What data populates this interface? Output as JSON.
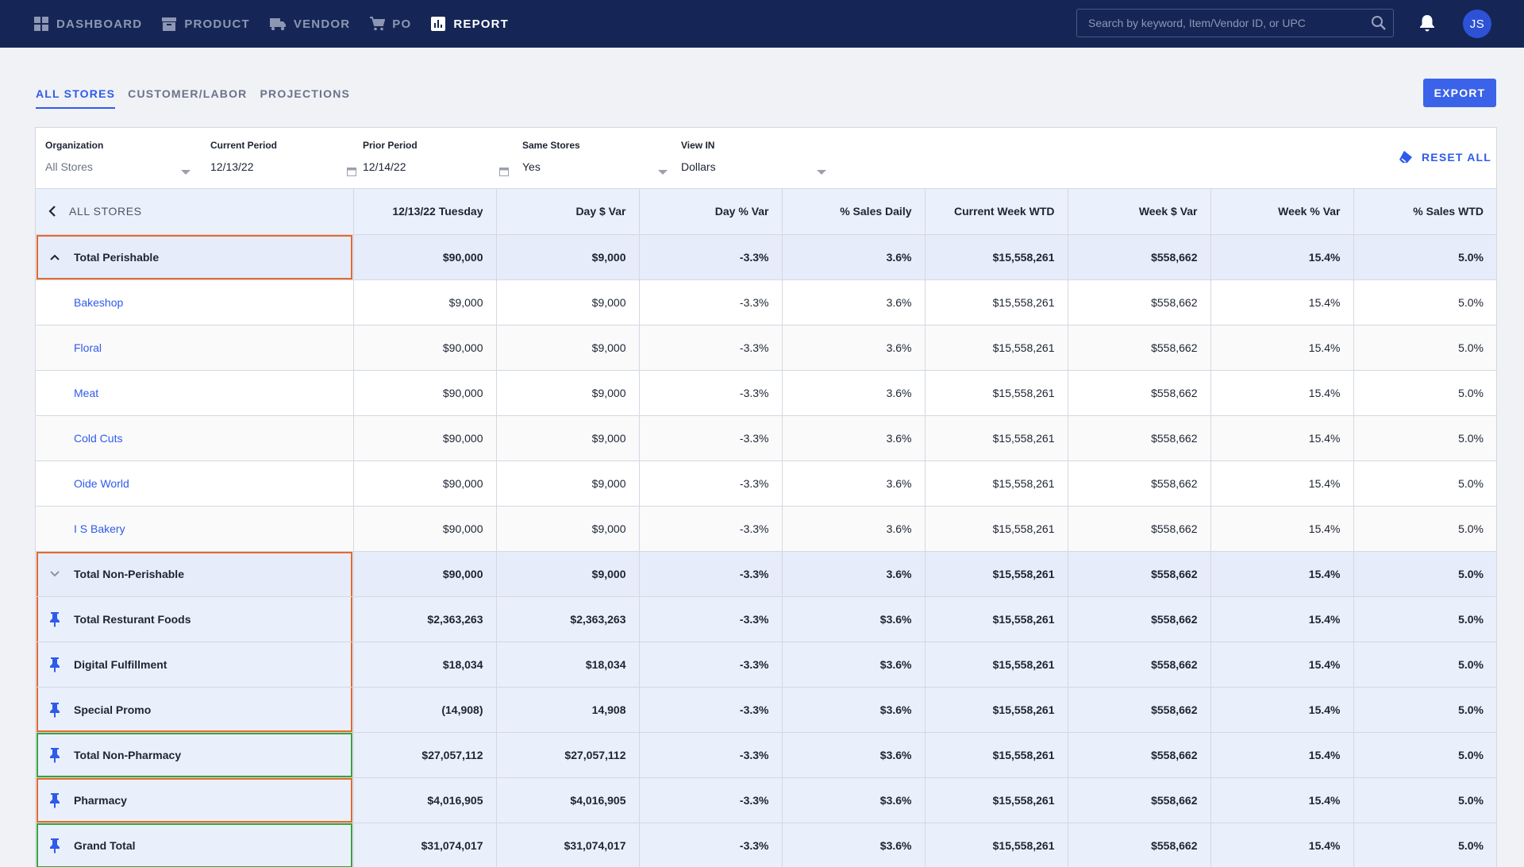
{
  "nav": {
    "items": [
      {
        "label": "DASHBOARD",
        "icon": "dashboard-icon",
        "active": false
      },
      {
        "label": "PRODUCT",
        "icon": "product-icon",
        "active": false
      },
      {
        "label": "VENDOR",
        "icon": "truck-icon",
        "active": false
      },
      {
        "label": "PO",
        "icon": "cart-icon",
        "active": false
      },
      {
        "label": "REPORT",
        "icon": "report-icon",
        "active": true
      }
    ],
    "search_placeholder": "Search by keyword, Item/Vendor ID, or UPC",
    "avatar_initials": "JS"
  },
  "tabs": [
    {
      "label": "ALL STORES",
      "active": true
    },
    {
      "label": "CUSTOMER/LABOR",
      "active": false
    },
    {
      "label": "PROJECTIONS",
      "active": false
    }
  ],
  "export_label": "EXPORT",
  "filters": {
    "organization": {
      "label": "Organization",
      "value": "All Stores"
    },
    "current_period": {
      "label": "Current Period",
      "value": "12/13/22"
    },
    "prior_period": {
      "label": "Prior Period",
      "value": "12/14/22"
    },
    "same_stores": {
      "label": "Same Stores",
      "value": "Yes"
    },
    "view_in": {
      "label": "View IN",
      "value": "Dollars"
    },
    "reset_label": "RESET ALL"
  },
  "table": {
    "back_label": "ALL STORES",
    "columns": [
      "12/13/22 Tuesday",
      "Day $ Var",
      "Day % Var",
      "% Sales Daily",
      "Current Week WTD",
      "Week $ Var",
      "Week % Var",
      "% Sales WTD"
    ],
    "rows": [
      {
        "label": "Total Perishable",
        "kind": "total",
        "lead": "chevron-up",
        "highlight": "orange",
        "values": [
          "$90,000",
          "$9,000",
          "-3.3%",
          "3.6%",
          "$15,558,261",
          "$558,662",
          "15.4%",
          "5.0%"
        ]
      },
      {
        "label": "Bakeshop",
        "kind": "child",
        "values": [
          "$9,000",
          "$9,000",
          "-3.3%",
          "3.6%",
          "$15,558,261",
          "$558,662",
          "15.4%",
          "5.0%"
        ]
      },
      {
        "label": "Floral",
        "kind": "child",
        "values": [
          "$90,000",
          "$9,000",
          "-3.3%",
          "3.6%",
          "$15,558,261",
          "$558,662",
          "15.4%",
          "5.0%"
        ]
      },
      {
        "label": "Meat",
        "kind": "child",
        "values": [
          "$90,000",
          "$9,000",
          "-3.3%",
          "3.6%",
          "$15,558,261",
          "$558,662",
          "15.4%",
          "5.0%"
        ]
      },
      {
        "label": "Cold Cuts",
        "kind": "child",
        "values": [
          "$90,000",
          "$9,000",
          "-3.3%",
          "3.6%",
          "$15,558,261",
          "$558,662",
          "15.4%",
          "5.0%"
        ]
      },
      {
        "label": "Oide World",
        "kind": "child",
        "values": [
          "$90,000",
          "$9,000",
          "-3.3%",
          "3.6%",
          "$15,558,261",
          "$558,662",
          "15.4%",
          "5.0%"
        ]
      },
      {
        "label": "I S Bakery",
        "kind": "child",
        "values": [
          "$90,000",
          "$9,000",
          "-3.3%",
          "3.6%",
          "$15,558,261",
          "$558,662",
          "15.4%",
          "5.0%"
        ]
      },
      {
        "label": "Total Non-Perishable",
        "kind": "total",
        "lead": "chevron-down",
        "highlight": "orange-top",
        "values": [
          "$90,000",
          "$9,000",
          "-3.3%",
          "3.6%",
          "$15,558,261",
          "$558,662",
          "15.4%",
          "5.0%"
        ]
      },
      {
        "label": "Total Resturant Foods",
        "kind": "pinned",
        "lead": "pin",
        "highlight": "orange-mid",
        "values": [
          "$2,363,263",
          "$2,363,263",
          "-3.3%",
          "$3.6%",
          "$15,558,261",
          "$558,662",
          "15.4%",
          "5.0%"
        ]
      },
      {
        "label": "Digital Fulfillment",
        "kind": "pinned",
        "lead": "pin",
        "highlight": "orange-mid",
        "values": [
          "$18,034",
          "$18,034",
          "-3.3%",
          "$3.6%",
          "$15,558,261",
          "$558,662",
          "15.4%",
          "5.0%"
        ]
      },
      {
        "label": "Special Promo",
        "kind": "pinned",
        "lead": "pin",
        "highlight": "orange-bottom",
        "values": [
          "(14,908)",
          "14,908",
          "-3.3%",
          "$3.6%",
          "$15,558,261",
          "$558,662",
          "15.4%",
          "5.0%"
        ]
      },
      {
        "label": "Total Non-Pharmacy",
        "kind": "pinned",
        "lead": "pin",
        "highlight": "green",
        "values": [
          "$27,057,112",
          "$27,057,112",
          "-3.3%",
          "$3.6%",
          "$15,558,261",
          "$558,662",
          "15.4%",
          "5.0%"
        ]
      },
      {
        "label": "Pharmacy",
        "kind": "pinned",
        "lead": "pin",
        "highlight": "orange",
        "values": [
          "$4,016,905",
          "$4,016,905",
          "-3.3%",
          "$3.6%",
          "$15,558,261",
          "$558,662",
          "15.4%",
          "5.0%"
        ]
      },
      {
        "label": "Grand Total",
        "kind": "pinned",
        "lead": "pin",
        "highlight": "green",
        "values": [
          "$31,074,017",
          "$31,074,017",
          "-3.3%",
          "$3.6%",
          "$15,558,261",
          "$558,662",
          "15.4%",
          "5.0%"
        ]
      }
    ]
  },
  "colors": {
    "nav_bg": "#152656",
    "accent": "#2f5bea",
    "highlight_orange": "#e46a2c",
    "highlight_green": "#3aa33b"
  }
}
